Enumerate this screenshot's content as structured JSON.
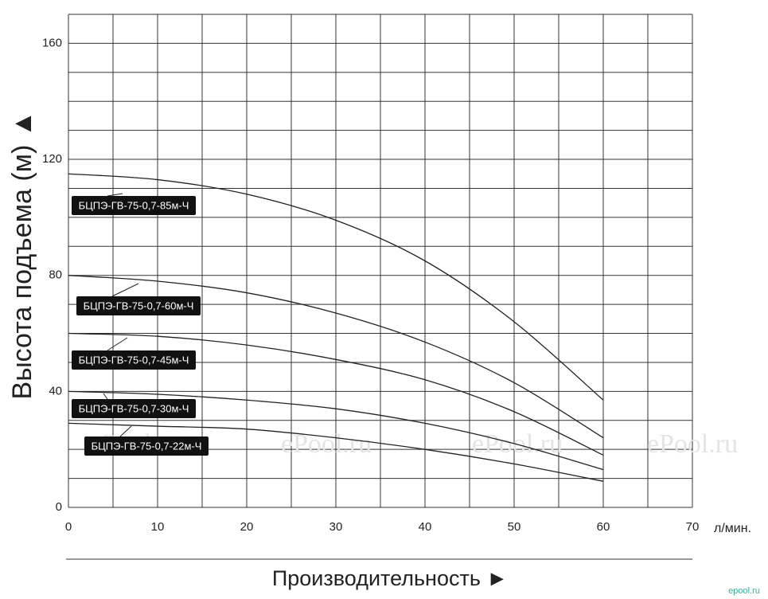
{
  "chart_data": {
    "type": "line",
    "y_label": "Высота подъема (м) ▲",
    "x_label": "Производительность ►",
    "x_unit": "л/мин.",
    "watermark": "ePool.ru",
    "corner_mark": "epool.ru",
    "x": [
      0,
      10,
      20,
      30,
      40,
      50,
      60
    ],
    "series": [
      {
        "name": "БЦПЭ-ГВ-75-0,7-85м-Ч",
        "color": "#222222",
        "values": [
          115,
          113,
          108,
          99,
          85,
          64,
          37
        ]
      },
      {
        "name": "БЦПЭ-ГВ-75-0,7-60м-Ч",
        "color": "#222222",
        "values": [
          80,
          78,
          74,
          67,
          57,
          43,
          24
        ]
      },
      {
        "name": "БЦПЭ-ГВ-75-0,7-45м-Ч",
        "color": "#222222",
        "values": [
          60,
          59,
          56,
          51,
          44,
          33,
          18
        ]
      },
      {
        "name": "БЦПЭ-ГВ-75-0,7-30м-Ч",
        "color": "#222222",
        "values": [
          40,
          39,
          37,
          34,
          29,
          22,
          13
        ]
      },
      {
        "name": "БЦПЭ-ГВ-75-0,7-22м-Ч",
        "color": "#222222",
        "values": [
          29,
          28,
          27,
          24,
          20,
          15,
          9
        ]
      }
    ],
    "xlim": [
      0,
      70
    ],
    "xticks": [
      0,
      10,
      20,
      30,
      40,
      50,
      60,
      70
    ],
    "ylim": [
      0,
      170
    ],
    "yticks": [
      0,
      40,
      80,
      120,
      160
    ],
    "xgrid": [
      0,
      5,
      10,
      15,
      20,
      25,
      30,
      35,
      40,
      45,
      50,
      55,
      60,
      65,
      70
    ],
    "ygrid": [
      0,
      10,
      20,
      30,
      40,
      50,
      60,
      70,
      80,
      90,
      100,
      110,
      120,
      130,
      140,
      150,
      160,
      170
    ]
  }
}
